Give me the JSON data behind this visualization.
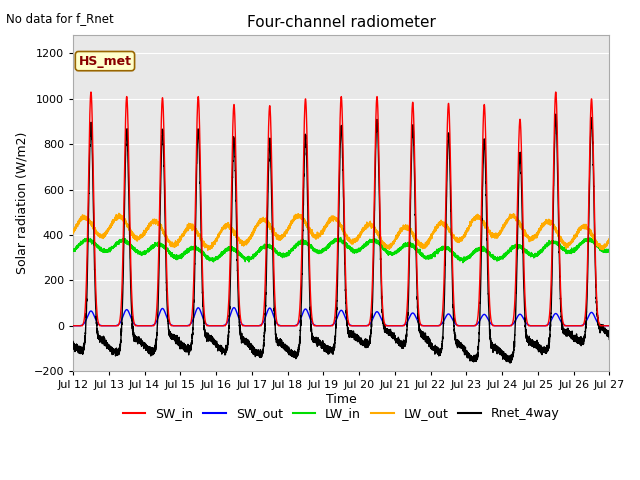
{
  "title": "Four-channel radiometer",
  "top_left_text": "No data for f_Rnet",
  "ylabel": "Solar radiation (W/m2)",
  "xlabel": "Time",
  "annotation_box": "HS_met",
  "annotation_box_facecolor": "#ffffcc",
  "annotation_box_edgecolor": "#996600",
  "annotation_box_textcolor": "#880000",
  "xlim_start": 0,
  "xlim_end": 15.0,
  "ylim": [
    -200,
    1280
  ],
  "yticks": [
    -200,
    0,
    200,
    400,
    600,
    800,
    1000,
    1200
  ],
  "xtick_labels": [
    "Jul 12",
    "Jul 13",
    "Jul 14",
    "Jul 15",
    "Jul 16",
    "Jul 17",
    "Jul 18",
    "Jul 19",
    "Jul 20",
    "Jul 21",
    "Jul 22",
    "Jul 23",
    "Jul 24",
    "Jul 25",
    "Jul 26",
    "Jul 27"
  ],
  "colors": {
    "SW_in": "#ff0000",
    "SW_out": "#0000ff",
    "LW_in": "#00dd00",
    "LW_out": "#ffaa00",
    "Rnet_4way": "#000000"
  },
  "legend_labels": [
    "SW_in",
    "SW_out",
    "LW_in",
    "LW_out",
    "Rnet_4way"
  ],
  "plot_bg_color": "#e8e8e8",
  "fig_bg_color": "#ffffff",
  "grid_color": "#ffffff",
  "n_days": 15,
  "pts_per_day": 480
}
